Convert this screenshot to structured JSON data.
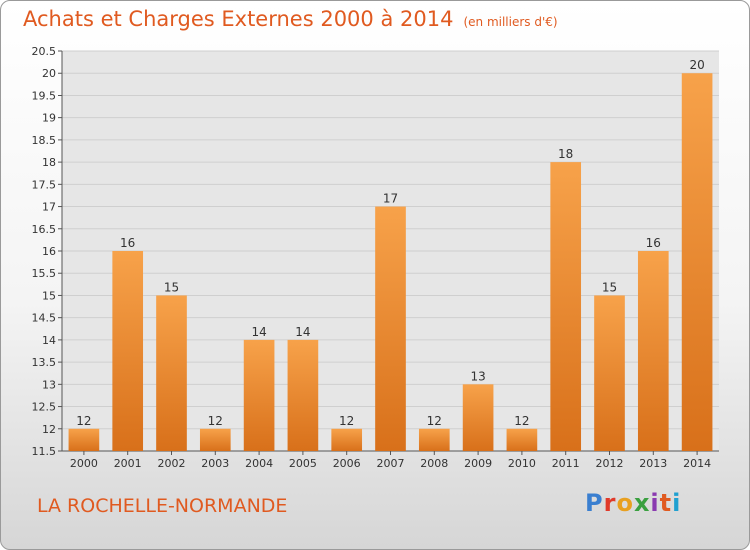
{
  "chart_data": {
    "type": "bar",
    "title": "Achats et Charges Externes 2000 à 2014",
    "subtitle": "(en milliers d'€)",
    "categories": [
      "2000",
      "2001",
      "2002",
      "2003",
      "2004",
      "2005",
      "2006",
      "2007",
      "2008",
      "2009",
      "2010",
      "2011",
      "2012",
      "2013",
      "2014"
    ],
    "values": [
      12,
      16,
      15,
      12,
      14,
      14,
      12,
      17,
      12,
      13,
      12,
      18,
      15,
      16,
      20
    ],
    "data_labels": [
      "12",
      "16",
      "15",
      "12",
      "14",
      "14",
      "12",
      "17",
      "12",
      "13",
      "12",
      "18",
      "15",
      "16",
      "20"
    ],
    "ylim": [
      11.5,
      20.5
    ],
    "yticks": [
      "11.5",
      "12",
      "12.5",
      "13",
      "13.5",
      "14",
      "14.5",
      "15",
      "15.5",
      "16",
      "16.5",
      "17",
      "17.5",
      "18",
      "18.5",
      "19",
      "19.5",
      "20",
      "20.5"
    ],
    "grid": true,
    "legend": "none",
    "bar_color": "#f0902c",
    "xlabel": "",
    "ylabel": ""
  },
  "footer": {
    "commune": "LA ROCHELLE-NORMANDE",
    "logo": "Proxiti",
    "logo_colors": [
      "#3a7fd0",
      "#e03a2a",
      "#e8a020",
      "#3aa040",
      "#8a3ab0",
      "#e05a20",
      "#20a0d0"
    ]
  },
  "colors": {
    "accent": "#e05a20"
  }
}
